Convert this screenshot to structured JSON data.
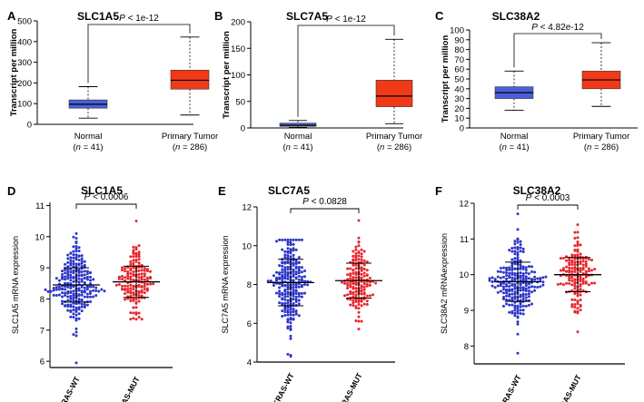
{
  "chart_data": [
    {
      "type": "box",
      "panel": "A",
      "title": "SLC1A5",
      "ylabel": "Transcript per million",
      "ylim": [
        0,
        500
      ],
      "yticks": [
        0,
        100,
        200,
        300,
        400,
        500
      ],
      "significance": "P < 1e-12",
      "categories": [
        {
          "name": "Normal",
          "n_label": "(n = 41)",
          "color": "#4a5fd9",
          "min": 30,
          "q1": 78,
          "median": 97,
          "q3": 118,
          "max": 182
        },
        {
          "name": "Primary Tumor",
          "n_label": "(n = 286)",
          "color": "#f03a17",
          "min": 45,
          "q1": 170,
          "median": 213,
          "q3": 262,
          "max": 422
        }
      ]
    },
    {
      "type": "box",
      "panel": "B",
      "title": "SLC7A5",
      "ylabel": "Transcript per million",
      "ylim": [
        0,
        200
      ],
      "yticks": [
        0,
        50,
        100,
        150,
        200
      ],
      "significance": "P < 1e-12",
      "categories": [
        {
          "name": "Normal",
          "n_label": "(n = 41)",
          "color": "#4a5fd9",
          "min": 1,
          "q1": 3,
          "median": 5,
          "q3": 9,
          "max": 14
        },
        {
          "name": "Primary Tumor",
          "n_label": "(n = 286)",
          "color": "#f03a17",
          "min": 8,
          "q1": 40,
          "median": 60,
          "q3": 90,
          "max": 167
        }
      ]
    },
    {
      "type": "box",
      "panel": "C",
      "title": "SLC38A2",
      "ylabel": "Transcript per million",
      "ylim": [
        0,
        100
      ],
      "yticks": [
        0,
        10,
        20,
        30,
        40,
        50,
        60,
        70,
        80,
        90,
        100
      ],
      "significance": "P < 4.82e-12",
      "categories": [
        {
          "name": "Normal",
          "n_label": "(n = 41)",
          "color": "#4a5fd9",
          "min": 18,
          "q1": 30,
          "median": 36,
          "q3": 42,
          "max": 58
        },
        {
          "name": "Primary Tumor",
          "n_label": "(n = 286)",
          "color": "#f03a17",
          "min": 22,
          "q1": 40,
          "median": 49,
          "q3": 58,
          "max": 87
        }
      ]
    },
    {
      "type": "scatter",
      "panel": "D",
      "title": "SLC1A5",
      "ylabel": "SLC1A5 mRNA expression",
      "ylim": [
        5.8,
        11.1
      ],
      "yticks": [
        6,
        7,
        8,
        9,
        10,
        11
      ],
      "significance": "P < 0.0006",
      "categories": [
        {
          "name": "KRAS-WT",
          "color": "#2b35c9",
          "n": 240,
          "mean": 8.45,
          "sd": 0.55,
          "min": 5.95,
          "max": 10.1
        },
        {
          "name": "KRAS-MUT",
          "color": "#e8262b",
          "n": 160,
          "mean": 8.55,
          "sd": 0.5,
          "min": 7.35,
          "max": 10.5
        }
      ]
    },
    {
      "type": "scatter",
      "panel": "E",
      "title": "SLC7A5",
      "ylabel": "SLC7A5 mRNA expression",
      "ylim": [
        4,
        12
      ],
      "yticks": [
        4,
        6,
        8,
        10,
        12
      ],
      "significance": "P < 0.0828",
      "categories": [
        {
          "name": "KRAS-WT",
          "color": "#2b35c9",
          "n": 240,
          "mean": 8.1,
          "sd": 1.2,
          "min": 4.3,
          "max": 10.3
        },
        {
          "name": "KRAS-MUT",
          "color": "#e8262b",
          "n": 160,
          "mean": 8.2,
          "sd": 0.9,
          "min": 5.7,
          "max": 11.3
        }
      ]
    },
    {
      "type": "scatter",
      "panel": "F",
      "title": "SLC38A2",
      "ylabel": "SLC38A2 mRNAexpression",
      "ylim": [
        7.5,
        12
      ],
      "yticks": [
        8,
        9,
        10,
        11,
        12
      ],
      "significance": "P < 0.0003",
      "categories": [
        {
          "name": "KRAS-WT",
          "color": "#2b35c9",
          "n": 240,
          "mean": 9.8,
          "sd": 0.55,
          "min": 7.8,
          "max": 11.7
        },
        {
          "name": "KRAS-MUT",
          "color": "#e8262b",
          "n": 160,
          "mean": 10.0,
          "sd": 0.48,
          "min": 8.4,
          "max": 11.4
        }
      ]
    }
  ]
}
